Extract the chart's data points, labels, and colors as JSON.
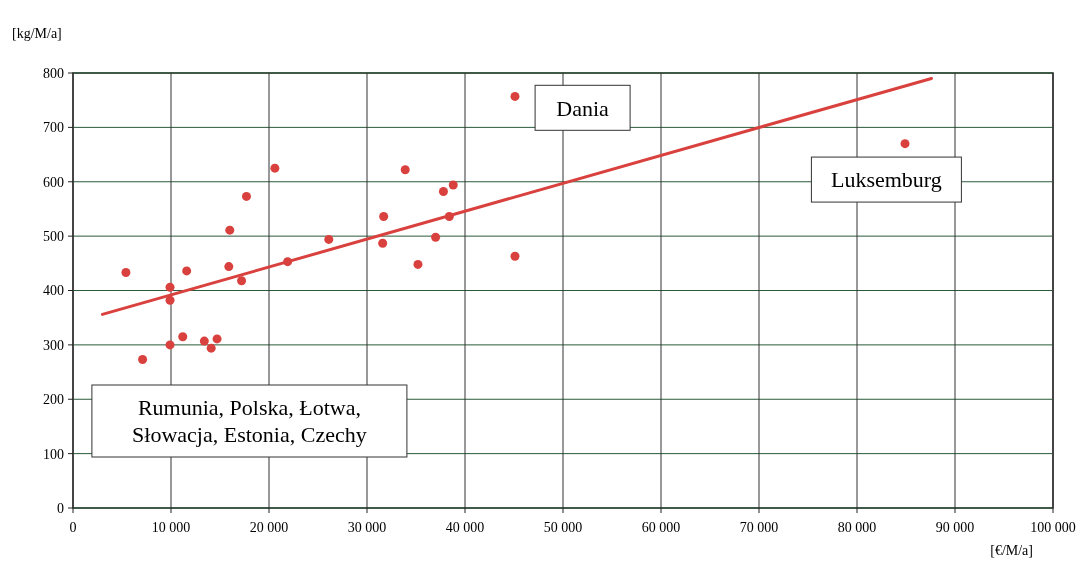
{
  "chart_data": {
    "type": "scatter",
    "xlabel": "[€/M/a]",
    "ylabel": "[kg/M/a]",
    "xlim": [
      0,
      100000
    ],
    "ylim": [
      0,
      800
    ],
    "xticks": [
      {
        "value": 0,
        "label": "0"
      },
      {
        "value": 10000,
        "label": "10 000"
      },
      {
        "value": 20000,
        "label": "20 000"
      },
      {
        "value": 30000,
        "label": "30 000"
      },
      {
        "value": 40000,
        "label": "40 000"
      },
      {
        "value": 50000,
        "label": "50 000"
      },
      {
        "value": 60000,
        "label": "60 000"
      },
      {
        "value": 70000,
        "label": "70 000"
      },
      {
        "value": 80000,
        "label": "80 000"
      },
      {
        "value": 90000,
        "label": "90 000"
      },
      {
        "value": 100000,
        "label": "100 000"
      }
    ],
    "yticks": [
      0,
      100,
      200,
      300,
      400,
      500,
      600,
      700,
      800
    ],
    "grid": true,
    "series": [
      {
        "marker": "circle",
        "color": "#d9413e",
        "x": [
          5400,
          7100,
          9900,
          9900,
          9900,
          11200,
          11600,
          13400,
          14100,
          14700,
          16000,
          15900,
          17200,
          17700,
          20600,
          21900,
          26100,
          31700,
          31600,
          33900,
          35200,
          37000,
          37800,
          38800,
          38400,
          45100,
          45100,
          84900
        ],
        "values": [
          433,
          273,
          406,
          382,
          300,
          315,
          436,
          307,
          294,
          311,
          511,
          444,
          418,
          573,
          625,
          453,
          494,
          536,
          487,
          622,
          448,
          498,
          582,
          594,
          536,
          757,
          463,
          670
        ]
      },
      {
        "type": "line",
        "color": "#d9413e",
        "x": [
          3000,
          87600
        ],
        "values": [
          356,
          790
        ]
      }
    ],
    "annotations": [
      "Dania",
      "Luksemburg",
      "Rumunia, Polska, Łotwa,\nSłowacja, Estonia, Czechy"
    ]
  }
}
